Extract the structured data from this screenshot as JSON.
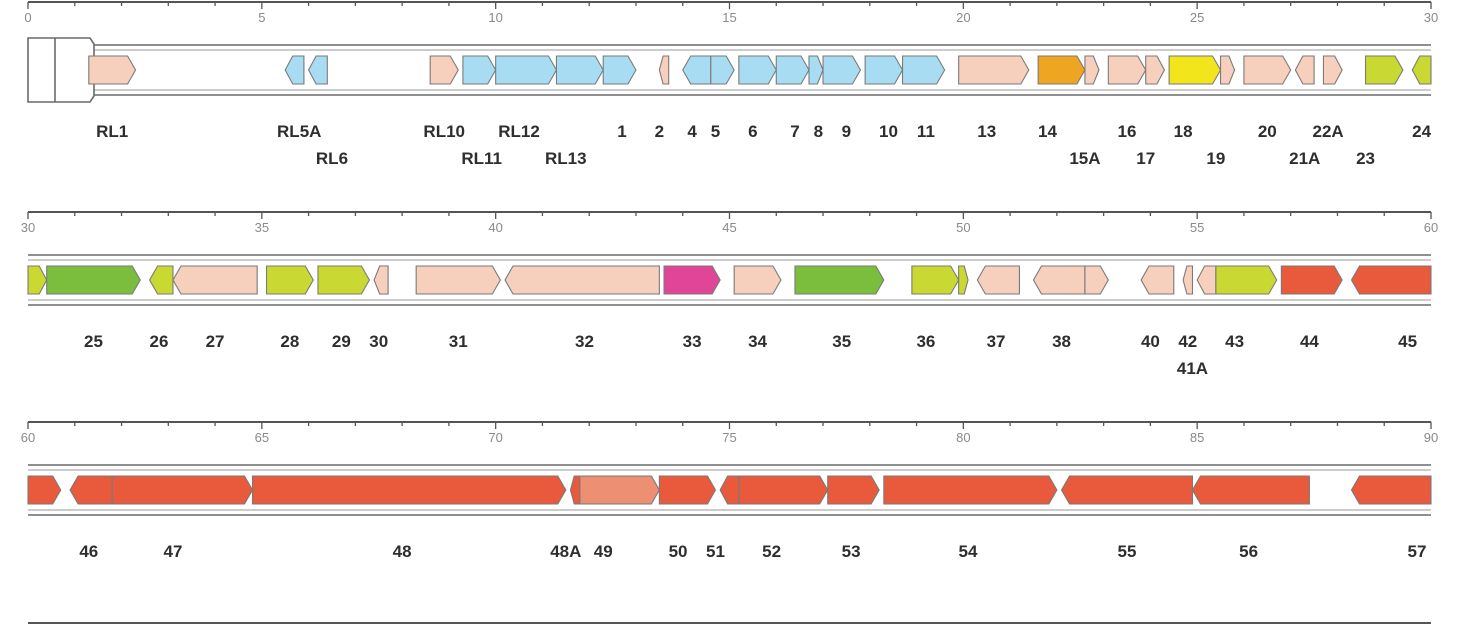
{
  "colors": {
    "ltr": "#f6cfbd",
    "lightblue": "#a8dcf2",
    "orange": "#eea622",
    "yellow": "#f3e51c",
    "yellowgreen": "#c9d931",
    "green": "#7bbd3d",
    "magenta": "#e04598",
    "red": "#e85a3b",
    "salmon": "#ec8f73",
    "stroke": "#7a7a7a"
  },
  "rows": [
    {
      "start": 0,
      "end": 30,
      "ticks": [
        "0",
        "5",
        "10",
        "15",
        "20",
        "25",
        "30"
      ],
      "genes": [
        {
          "s": 1.3,
          "e": 2.3,
          "c": "ltr",
          "st": "+"
        },
        {
          "s": 5.5,
          "e": 5.9,
          "c": "lightblue",
          "st": "-"
        },
        {
          "s": 6.0,
          "e": 6.4,
          "c": "lightblue",
          "st": "-"
        },
        {
          "s": 8.6,
          "e": 9.2,
          "c": "ltr",
          "st": "+"
        },
        {
          "s": 9.3,
          "e": 10.0,
          "c": "lightblue",
          "st": "+"
        },
        {
          "s": 10.0,
          "e": 11.3,
          "c": "lightblue",
          "st": "+"
        },
        {
          "s": 11.3,
          "e": 12.3,
          "c": "lightblue",
          "st": "+"
        },
        {
          "s": 12.3,
          "e": 13.0,
          "c": "lightblue",
          "st": "+"
        },
        {
          "s": 13.5,
          "e": 13.7,
          "c": "ltr",
          "st": "-"
        },
        {
          "s": 14.0,
          "e": 14.6,
          "c": "lightblue",
          "st": "-"
        },
        {
          "s": 14.6,
          "e": 15.1,
          "c": "lightblue",
          "st": "+"
        },
        {
          "s": 15.2,
          "e": 16.0,
          "c": "lightblue",
          "st": "+"
        },
        {
          "s": 16.0,
          "e": 16.7,
          "c": "lightblue",
          "st": "+"
        },
        {
          "s": 16.7,
          "e": 17.0,
          "c": "lightblue",
          "st": "+"
        },
        {
          "s": 17.0,
          "e": 17.8,
          "c": "lightblue",
          "st": "+"
        },
        {
          "s": 17.9,
          "e": 18.7,
          "c": "lightblue",
          "st": "+"
        },
        {
          "s": 18.7,
          "e": 19.6,
          "c": "lightblue",
          "st": "+"
        },
        {
          "s": 19.9,
          "e": 21.4,
          "c": "ltr",
          "st": "+"
        },
        {
          "s": 21.6,
          "e": 22.6,
          "c": "orange",
          "st": "+"
        },
        {
          "s": 22.6,
          "e": 22.9,
          "c": "ltr",
          "st": "+"
        },
        {
          "s": 23.1,
          "e": 23.9,
          "c": "ltr",
          "st": "+"
        },
        {
          "s": 23.9,
          "e": 24.3,
          "c": "ltr",
          "st": "+"
        },
        {
          "s": 24.4,
          "e": 25.5,
          "c": "yellow",
          "st": "+"
        },
        {
          "s": 25.5,
          "e": 25.8,
          "c": "ltr",
          "st": "+"
        },
        {
          "s": 26.0,
          "e": 27.0,
          "c": "ltr",
          "st": "+"
        },
        {
          "s": 27.1,
          "e": 27.5,
          "c": "ltr",
          "st": "-"
        },
        {
          "s": 27.7,
          "e": 28.1,
          "c": "ltr",
          "st": "+"
        },
        {
          "s": 28.6,
          "e": 29.4,
          "c": "yellowgreen",
          "st": "+"
        },
        {
          "s": 29.6,
          "e": 30.0,
          "c": "yellowgreen",
          "st": "-"
        }
      ],
      "labels": [
        {
          "t": "RL1",
          "x": 1.8,
          "l": 0
        },
        {
          "t": "RL5A",
          "x": 5.8,
          "l": 0
        },
        {
          "t": "RL6",
          "x": 6.5,
          "l": 1
        },
        {
          "t": "RL10",
          "x": 8.9,
          "l": 0
        },
        {
          "t": "RL11",
          "x": 9.7,
          "l": 1
        },
        {
          "t": "RL12",
          "x": 10.5,
          "l": 0
        },
        {
          "t": "RL13",
          "x": 11.5,
          "l": 1
        },
        {
          "t": "1",
          "x": 12.7,
          "l": 0
        },
        {
          "t": "2",
          "x": 13.5,
          "l": 0
        },
        {
          "t": "4",
          "x": 14.2,
          "l": 0
        },
        {
          "t": "5",
          "x": 14.7,
          "l": 0
        },
        {
          "t": "6",
          "x": 15.5,
          "l": 0
        },
        {
          "t": "7",
          "x": 16.4,
          "l": 0
        },
        {
          "t": "8",
          "x": 16.9,
          "l": 0
        },
        {
          "t": "9",
          "x": 17.5,
          "l": 0
        },
        {
          "t": "10",
          "x": 18.4,
          "l": 0
        },
        {
          "t": "11",
          "x": 19.2,
          "l": 0
        },
        {
          "t": "13",
          "x": 20.5,
          "l": 0
        },
        {
          "t": "14",
          "x": 21.8,
          "l": 0
        },
        {
          "t": "15A",
          "x": 22.6,
          "l": 1
        },
        {
          "t": "16",
          "x": 23.5,
          "l": 0
        },
        {
          "t": "17",
          "x": 23.9,
          "l": 1
        },
        {
          "t": "18",
          "x": 24.7,
          "l": 0
        },
        {
          "t": "19",
          "x": 25.4,
          "l": 1
        },
        {
          "t": "20",
          "x": 26.5,
          "l": 0
        },
        {
          "t": "21A",
          "x": 27.3,
          "l": 1
        },
        {
          "t": "22A",
          "x": 27.8,
          "l": 0
        },
        {
          "t": "23",
          "x": 28.6,
          "l": 1
        },
        {
          "t": "24",
          "x": 29.8,
          "l": 0
        }
      ]
    },
    {
      "start": 30,
      "end": 60,
      "ticks": [
        "30",
        "35",
        "40",
        "45",
        "50",
        "55",
        "60"
      ],
      "genes": [
        {
          "s": 30.0,
          "e": 30.4,
          "c": "yellowgreen",
          "st": "+"
        },
        {
          "s": 30.4,
          "e": 32.4,
          "c": "green",
          "st": "+"
        },
        {
          "s": 32.6,
          "e": 33.1,
          "c": "yellowgreen",
          "st": "-"
        },
        {
          "s": 33.1,
          "e": 34.9,
          "c": "ltr",
          "st": "-"
        },
        {
          "s": 35.1,
          "e": 36.1,
          "c": "yellowgreen",
          "st": "+"
        },
        {
          "s": 36.2,
          "e": 37.3,
          "c": "yellowgreen",
          "st": "+"
        },
        {
          "s": 37.4,
          "e": 37.7,
          "c": "ltr",
          "st": "-"
        },
        {
          "s": 38.3,
          "e": 40.1,
          "c": "ltr",
          "st": "+"
        },
        {
          "s": 40.2,
          "e": 43.5,
          "c": "ltr",
          "st": "-"
        },
        {
          "s": 43.6,
          "e": 44.8,
          "c": "magenta",
          "st": "+"
        },
        {
          "s": 45.1,
          "e": 46.1,
          "c": "ltr",
          "st": "+"
        },
        {
          "s": 46.4,
          "e": 48.3,
          "c": "green",
          "st": "+"
        },
        {
          "s": 48.9,
          "e": 49.9,
          "c": "yellowgreen",
          "st": "+"
        },
        {
          "s": 49.9,
          "e": 50.1,
          "c": "yellowgreen",
          "st": "+"
        },
        {
          "s": 50.3,
          "e": 51.2,
          "c": "ltr",
          "st": "-"
        },
        {
          "s": 51.5,
          "e": 52.6,
          "c": "ltr",
          "st": "-"
        },
        {
          "s": 52.6,
          "e": 53.1,
          "c": "ltr",
          "st": "+"
        },
        {
          "s": 53.8,
          "e": 54.5,
          "c": "ltr",
          "st": "-"
        },
        {
          "s": 54.7,
          "e": 54.9,
          "c": "ltr",
          "st": "-"
        },
        {
          "s": 55.0,
          "e": 55.4,
          "c": "ltr",
          "st": "-"
        },
        {
          "s": 55.4,
          "e": 56.7,
          "c": "yellowgreen",
          "st": "+"
        },
        {
          "s": 56.8,
          "e": 58.1,
          "c": "red",
          "st": "+"
        },
        {
          "s": 58.3,
          "e": 60.0,
          "c": "red",
          "st": "-"
        }
      ],
      "labels": [
        {
          "t": "25",
          "x": 31.4,
          "l": 0
        },
        {
          "t": "26",
          "x": 32.8,
          "l": 0
        },
        {
          "t": "27",
          "x": 34.0,
          "l": 0
        },
        {
          "t": "28",
          "x": 35.6,
          "l": 0
        },
        {
          "t": "29",
          "x": 36.7,
          "l": 0
        },
        {
          "t": "30",
          "x": 37.5,
          "l": 0
        },
        {
          "t": "31",
          "x": 39.2,
          "l": 0
        },
        {
          "t": "32",
          "x": 41.9,
          "l": 0
        },
        {
          "t": "33",
          "x": 44.2,
          "l": 0
        },
        {
          "t": "34",
          "x": 45.6,
          "l": 0
        },
        {
          "t": "35",
          "x": 47.4,
          "l": 0
        },
        {
          "t": "36",
          "x": 49.2,
          "l": 0
        },
        {
          "t": "37",
          "x": 50.7,
          "l": 0
        },
        {
          "t": "38",
          "x": 52.1,
          "l": 0
        },
        {
          "t": "40",
          "x": 54.0,
          "l": 0
        },
        {
          "t": "41A",
          "x": 54.9,
          "l": 1
        },
        {
          "t": "42",
          "x": 54.8,
          "l": 0
        },
        {
          "t": "43",
          "x": 55.8,
          "l": 0
        },
        {
          "t": "44",
          "x": 57.4,
          "l": 0
        },
        {
          "t": "45",
          "x": 59.5,
          "l": 0
        }
      ]
    },
    {
      "start": 60,
      "end": 90,
      "ticks": [
        "60",
        "65",
        "70",
        "75",
        "80",
        "85",
        "90"
      ],
      "genes": [
        {
          "s": 60.0,
          "e": 60.7,
          "c": "red",
          "st": "+"
        },
        {
          "s": 60.9,
          "e": 61.8,
          "c": "red",
          "st": "-"
        },
        {
          "s": 61.8,
          "e": 64.8,
          "c": "red",
          "st": "+"
        },
        {
          "s": 64.8,
          "e": 71.5,
          "c": "red",
          "st": "+"
        },
        {
          "s": 71.6,
          "e": 71.8,
          "c": "red",
          "st": "-"
        },
        {
          "s": 71.8,
          "e": 73.5,
          "c": "salmon",
          "st": "+"
        },
        {
          "s": 73.5,
          "e": 74.7,
          "c": "red",
          "st": "+"
        },
        {
          "s": 74.8,
          "e": 75.2,
          "c": "red",
          "st": "-"
        },
        {
          "s": 75.2,
          "e": 77.1,
          "c": "red",
          "st": "+"
        },
        {
          "s": 77.1,
          "e": 78.2,
          "c": "red",
          "st": "+"
        },
        {
          "s": 78.3,
          "e": 82.0,
          "c": "red",
          "st": "+"
        },
        {
          "s": 82.1,
          "e": 84.9,
          "c": "red",
          "st": "-"
        },
        {
          "s": 84.9,
          "e": 87.4,
          "c": "red",
          "st": "-"
        },
        {
          "s": 88.3,
          "e": 90.0,
          "c": "red",
          "st": "-"
        }
      ],
      "labels": [
        {
          "t": "46",
          "x": 61.3,
          "l": 0
        },
        {
          "t": "47",
          "x": 63.1,
          "l": 0
        },
        {
          "t": "48",
          "x": 68.0,
          "l": 0
        },
        {
          "t": "48A",
          "x": 71.5,
          "l": 0
        },
        {
          "t": "49",
          "x": 72.3,
          "l": 0
        },
        {
          "t": "50",
          "x": 73.9,
          "l": 0
        },
        {
          "t": "51",
          "x": 74.7,
          "l": 0
        },
        {
          "t": "52",
          "x": 75.9,
          "l": 0
        },
        {
          "t": "53",
          "x": 77.6,
          "l": 0
        },
        {
          "t": "54",
          "x": 80.1,
          "l": 0
        },
        {
          "t": "55",
          "x": 83.5,
          "l": 0
        },
        {
          "t": "56",
          "x": 86.1,
          "l": 0
        },
        {
          "t": "57",
          "x": 89.7,
          "l": 0
        }
      ]
    }
  ]
}
